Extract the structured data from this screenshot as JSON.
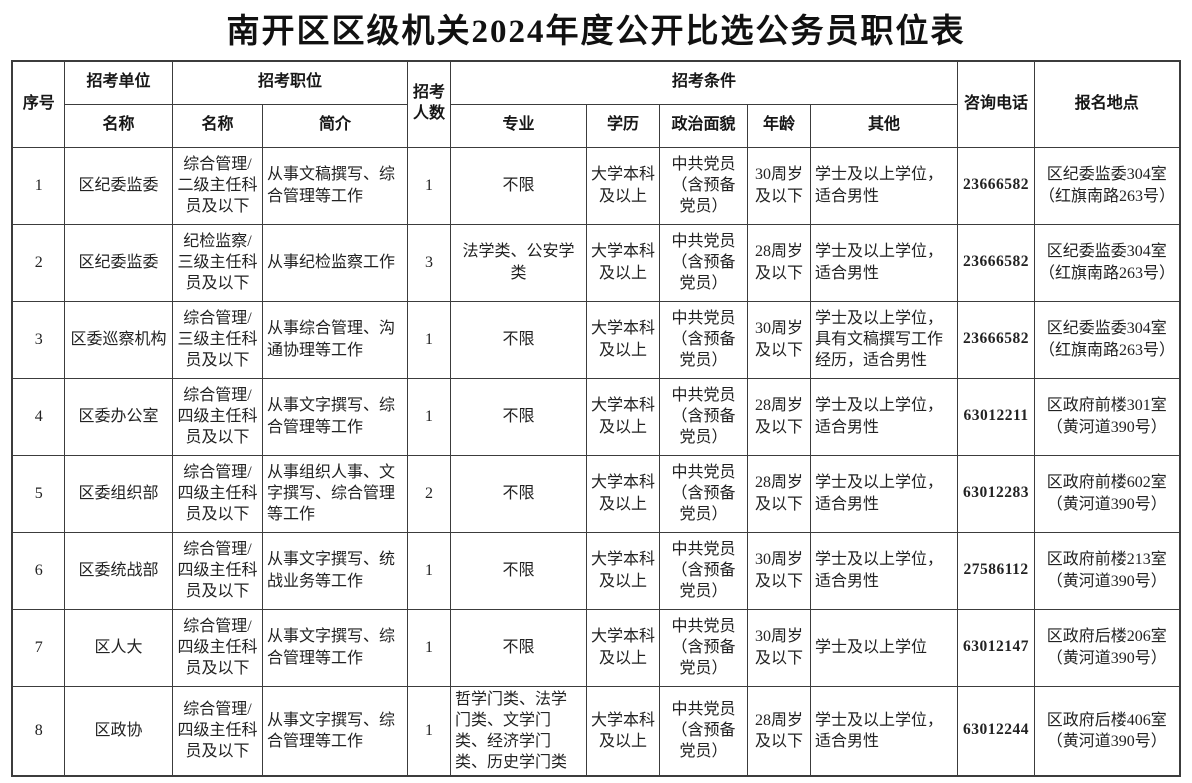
{
  "title": "南开区区级机关2024年度公开比选公务员职位表",
  "table": {
    "headers": {
      "serial": "序号",
      "unit_group": "招考单位",
      "position_group": "招考职位",
      "unit_name": "名称",
      "position_name": "名称",
      "intro": "简介",
      "count": "招考人数",
      "conditions_group": "招考条件",
      "major": "专业",
      "education": "学历",
      "political": "政治面貌",
      "age": "年龄",
      "other": "其他",
      "phone": "咨询电话",
      "location": "报名地点"
    },
    "rows": [
      {
        "serial": "1",
        "unit": "区纪委监委",
        "position": "综合管理/二级主任科员及以下",
        "intro": "从事文稿撰写、综合管理等工作",
        "count": "1",
        "major": "不限",
        "education": "大学本科及以上",
        "political": "中共党员（含预备党员）",
        "age": "30周岁及以下",
        "other": "学士及以上学位，适合男性",
        "phone": "23666582",
        "location": "区纪委监委304室（红旗南路263号）"
      },
      {
        "serial": "2",
        "unit": "区纪委监委",
        "position": "纪检监察/三级主任科员及以下",
        "intro": "从事纪检监察工作",
        "count": "3",
        "major": "法学类、公安学类",
        "education": "大学本科及以上",
        "political": "中共党员（含预备党员）",
        "age": "28周岁及以下",
        "other": "学士及以上学位，适合男性",
        "phone": "23666582",
        "location": "区纪委监委304室（红旗南路263号）"
      },
      {
        "serial": "3",
        "unit": "区委巡察机构",
        "position": "综合管理/三级主任科员及以下",
        "intro": "从事综合管理、沟通协理等工作",
        "count": "1",
        "major": "不限",
        "education": "大学本科及以上",
        "political": "中共党员（含预备党员）",
        "age": "30周岁及以下",
        "other": "学士及以上学位，具有文稿撰写工作经历，适合男性",
        "phone": "23666582",
        "location": "区纪委监委304室（红旗南路263号）"
      },
      {
        "serial": "4",
        "unit": "区委办公室",
        "position": "综合管理/四级主任科员及以下",
        "intro": "从事文字撰写、综合管理等工作",
        "count": "1",
        "major": "不限",
        "education": "大学本科及以上",
        "political": "中共党员（含预备党员）",
        "age": "28周岁及以下",
        "other": "学士及以上学位，适合男性",
        "phone": "63012211",
        "location": "区政府前楼301室（黄河道390号）"
      },
      {
        "serial": "5",
        "unit": "区委组织部",
        "position": "综合管理/四级主任科员及以下",
        "intro": "从事组织人事、文字撰写、综合管理等工作",
        "count": "2",
        "major": "不限",
        "education": "大学本科及以上",
        "political": "中共党员（含预备党员）",
        "age": "28周岁及以下",
        "other": "学士及以上学位，适合男性",
        "phone": "63012283",
        "location": "区政府前楼602室（黄河道390号）"
      },
      {
        "serial": "6",
        "unit": "区委统战部",
        "position": "综合管理/四级主任科员及以下",
        "intro": "从事文字撰写、统战业务等工作",
        "count": "1",
        "major": "不限",
        "education": "大学本科及以上",
        "political": "中共党员（含预备党员）",
        "age": "30周岁及以下",
        "other": "学士及以上学位，适合男性",
        "phone": "27586112",
        "location": "区政府前楼213室（黄河道390号）"
      },
      {
        "serial": "7",
        "unit": "区人大",
        "position": "综合管理/四级主任科员及以下",
        "intro": "从事文字撰写、综合管理等工作",
        "count": "1",
        "major": "不限",
        "education": "大学本科及以上",
        "political": "中共党员（含预备党员）",
        "age": "30周岁及以下",
        "other": "学士及以上学位",
        "phone": "63012147",
        "location": "区政府后楼206室（黄河道390号）"
      },
      {
        "serial": "8",
        "unit": "区政协",
        "position": "综合管理/四级主任科员及以下",
        "intro": "从事文字撰写、综合管理等工作",
        "count": "1",
        "major": "哲学门类、法学门类、文学门类、经济学门类、历史学门类",
        "education": "大学本科及以上",
        "political": "中共党员（含预备党员）",
        "age": "28周岁及以下",
        "other": "学士及以上学位，适合男性",
        "phone": "63012244",
        "location": "区政府后楼406室（黄河道390号）"
      }
    ]
  }
}
